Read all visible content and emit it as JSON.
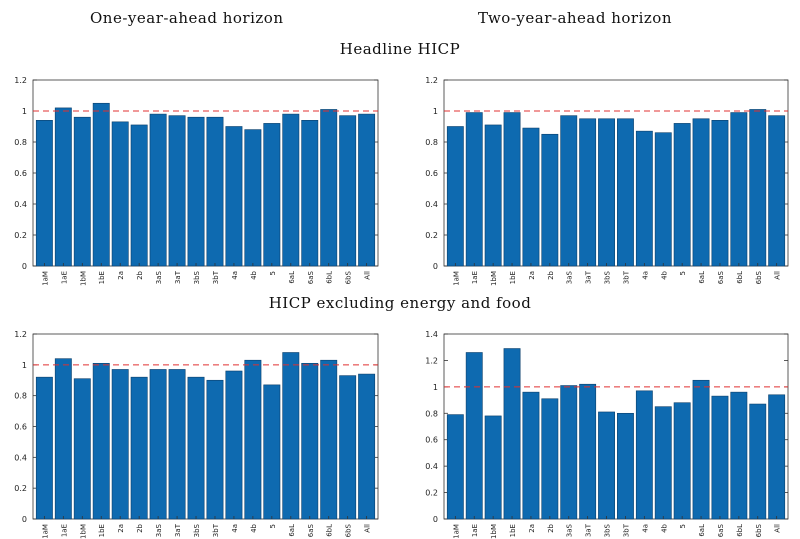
{
  "headers": {
    "col1": "One-year-ahead horizon",
    "col2": "Two-year-ahead horizon",
    "row1": "Headline HICP",
    "row2": "HICP excluding energy and food"
  },
  "colors": {
    "bar": "#0e6ab0",
    "reference_line": "#e03030",
    "frame": "#333333"
  },
  "chart_data": [
    {
      "type": "bar",
      "title": "Headline HICP — One-year-ahead horizon",
      "categories": [
        "1aM",
        "1aE",
        "1bM",
        "1bE",
        "2a",
        "2b",
        "3aS",
        "3aT",
        "3bS",
        "3bT",
        "4a",
        "4b",
        "5",
        "6aL",
        "6aS",
        "6bL",
        "6bS",
        "All"
      ],
      "values": [
        0.94,
        1.02,
        0.96,
        1.05,
        0.93,
        0.91,
        0.98,
        0.97,
        0.96,
        0.96,
        0.9,
        0.88,
        0.92,
        0.98,
        0.94,
        1.01,
        0.97,
        0.98
      ],
      "ylim": [
        0,
        1.2
      ],
      "yticks": [
        "0",
        "0.2",
        "0.4",
        "0.6",
        "0.8",
        "1",
        "1.2"
      ],
      "reference_line": 1
    },
    {
      "type": "bar",
      "title": "Headline HICP — Two-year-ahead horizon",
      "categories": [
        "1aM",
        "1aE",
        "1bM",
        "1bE",
        "2a",
        "2b",
        "3aS",
        "3aT",
        "3bS",
        "3bT",
        "4a",
        "4b",
        "5",
        "6aL",
        "6aS",
        "6bL",
        "6bS",
        "All"
      ],
      "values": [
        0.9,
        0.99,
        0.91,
        0.99,
        0.89,
        0.85,
        0.97,
        0.95,
        0.95,
        0.95,
        0.87,
        0.86,
        0.92,
        0.95,
        0.94,
        0.99,
        1.01,
        0.97
      ],
      "ylim": [
        0,
        1.2
      ],
      "yticks": [
        "0",
        "0.2",
        "0.4",
        "0.6",
        "0.8",
        "1",
        "1.2"
      ],
      "reference_line": 1
    },
    {
      "type": "bar",
      "title": "HICP excluding energy and food — One-year-ahead horizon",
      "categories": [
        "1aM",
        "1aE",
        "1bM",
        "1bE",
        "2a",
        "2b",
        "3aS",
        "3aT",
        "3bS",
        "3bT",
        "4a",
        "4b",
        "5",
        "6aL",
        "6aS",
        "6bL",
        "6bS",
        "All"
      ],
      "values": [
        0.92,
        1.04,
        0.91,
        1.01,
        0.97,
        0.92,
        0.97,
        0.97,
        0.92,
        0.9,
        0.96,
        1.03,
        0.87,
        1.08,
        1.01,
        1.03,
        0.93,
        0.94
      ],
      "ylim": [
        0,
        1.2
      ],
      "yticks": [
        "0",
        "0.2",
        "0.4",
        "0.6",
        "0.8",
        "1",
        "1.2"
      ],
      "reference_line": 1
    },
    {
      "type": "bar",
      "title": "HICP excluding energy and food — Two-year-ahead horizon",
      "categories": [
        "1aM",
        "1aE",
        "1bM",
        "1bE",
        "2a",
        "2b",
        "3aS",
        "3aT",
        "3bS",
        "3bT",
        "4a",
        "4b",
        "5",
        "6aL",
        "6aS",
        "6bL",
        "6bS",
        "All"
      ],
      "values": [
        0.79,
        1.26,
        0.78,
        1.29,
        0.96,
        0.91,
        1.01,
        1.02,
        0.81,
        0.8,
        0.97,
        0.85,
        0.88,
        1.05,
        0.93,
        0.96,
        0.87,
        0.94
      ],
      "ylim": [
        0,
        1.4
      ],
      "yticks": [
        "0",
        "0.2",
        "0.4",
        "0.6",
        "0.8",
        "1",
        "1.2",
        "1.4"
      ],
      "reference_line": 1
    }
  ]
}
